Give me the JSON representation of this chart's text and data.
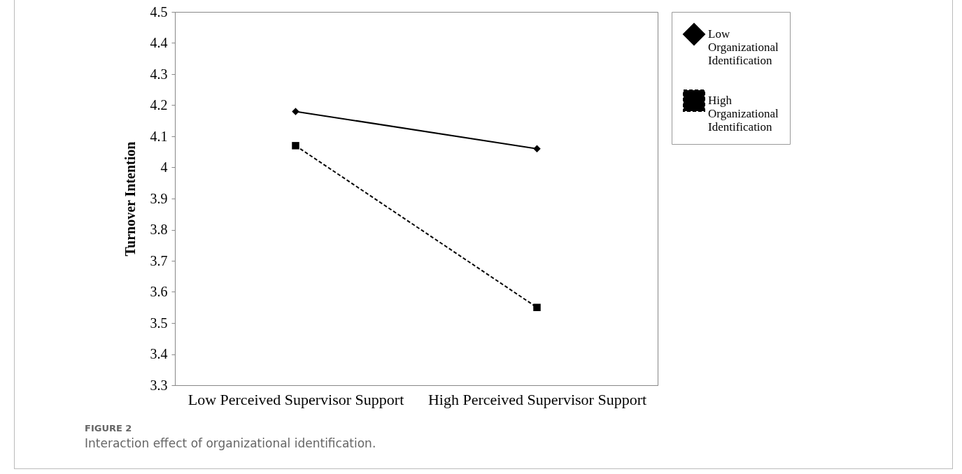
{
  "chart_data": {
    "type": "line",
    "ylabel": "Turnover Intention",
    "categories": [
      "Low Perceived Supervisor Support",
      "High Perceived Supervisor Support"
    ],
    "series": [
      {
        "name": "Low Organizational Identification",
        "color": "#000000",
        "values": [
          4.18,
          4.06
        ],
        "marker": "diamond",
        "line_style": "solid"
      },
      {
        "name": "High Organizational Identification",
        "color": "#000000",
        "values": [
          4.07,
          3.55
        ],
        "marker": "square",
        "line_style": "dashed"
      }
    ],
    "ylim": [
      3.3,
      4.5
    ],
    "yticks": [
      3.3,
      3.4,
      3.5,
      3.6,
      3.7,
      3.8,
      3.9,
      4,
      4.1,
      4.2,
      4.3,
      4.4,
      4.5
    ],
    "grid": false,
    "legend": "right",
    "annotations": [
      "FIGURE 2",
      "Interaction effect of organizational identification."
    ]
  }
}
